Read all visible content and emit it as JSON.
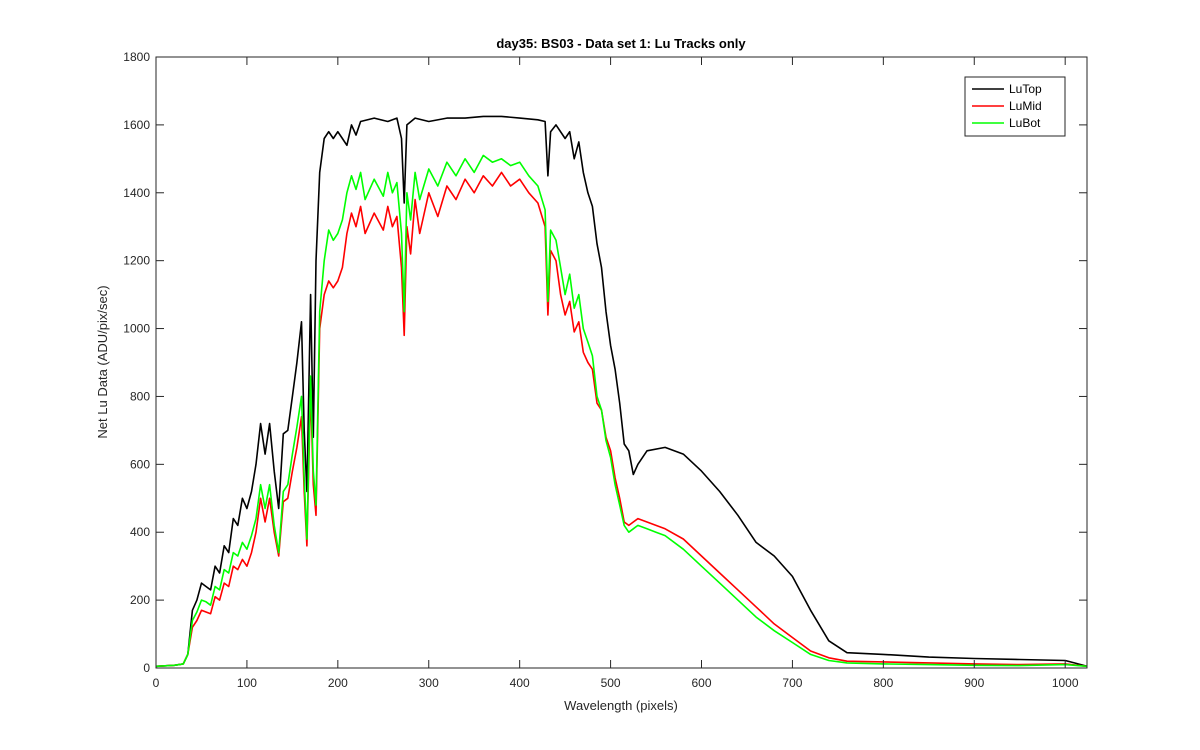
{
  "chart_data": {
    "type": "line",
    "title": "day35: BS03 - Data set 1: Lu Tracks only",
    "xlabel": "Wavelength (pixels)",
    "ylabel": "Net Lu Data (ADU/pix/sec)",
    "xlim": [
      0,
      1024
    ],
    "ylim": [
      0,
      1800
    ],
    "xticks": [
      0,
      100,
      200,
      300,
      400,
      500,
      600,
      700,
      800,
      900,
      1000
    ],
    "yticks": [
      0,
      200,
      400,
      600,
      800,
      1000,
      1200,
      1400,
      1600,
      1800
    ],
    "grid": false,
    "legend_position": "top-right",
    "series": [
      {
        "name": "LuTop",
        "color": "#000000",
        "points": [
          [
            0,
            5
          ],
          [
            20,
            8
          ],
          [
            30,
            12
          ],
          [
            35,
            40
          ],
          [
            40,
            170
          ],
          [
            45,
            200
          ],
          [
            50,
            250
          ],
          [
            55,
            240
          ],
          [
            60,
            230
          ],
          [
            65,
            300
          ],
          [
            70,
            280
          ],
          [
            75,
            360
          ],
          [
            80,
            340
          ],
          [
            85,
            440
          ],
          [
            90,
            420
          ],
          [
            95,
            500
          ],
          [
            100,
            470
          ],
          [
            105,
            520
          ],
          [
            110,
            600
          ],
          [
            115,
            720
          ],
          [
            120,
            630
          ],
          [
            125,
            720
          ],
          [
            130,
            580
          ],
          [
            135,
            470
          ],
          [
            140,
            690
          ],
          [
            145,
            700
          ],
          [
            150,
            800
          ],
          [
            155,
            900
          ],
          [
            160,
            1020
          ],
          [
            163,
            700
          ],
          [
            166,
            520
          ],
          [
            170,
            1100
          ],
          [
            173,
            680
          ],
          [
            176,
            1200
          ],
          [
            180,
            1460
          ],
          [
            185,
            1560
          ],
          [
            190,
            1580
          ],
          [
            195,
            1560
          ],
          [
            200,
            1580
          ],
          [
            205,
            1560
          ],
          [
            210,
            1540
          ],
          [
            215,
            1600
          ],
          [
            220,
            1570
          ],
          [
            225,
            1610
          ],
          [
            240,
            1620
          ],
          [
            255,
            1610
          ],
          [
            265,
            1620
          ],
          [
            270,
            1560
          ],
          [
            273,
            1370
          ],
          [
            276,
            1600
          ],
          [
            285,
            1620
          ],
          [
            300,
            1610
          ],
          [
            320,
            1620
          ],
          [
            340,
            1620
          ],
          [
            360,
            1625
          ],
          [
            380,
            1625
          ],
          [
            400,
            1620
          ],
          [
            420,
            1615
          ],
          [
            428,
            1610
          ],
          [
            431,
            1450
          ],
          [
            434,
            1580
          ],
          [
            440,
            1600
          ],
          [
            450,
            1560
          ],
          [
            455,
            1580
          ],
          [
            460,
            1500
          ],
          [
            465,
            1550
          ],
          [
            470,
            1460
          ],
          [
            475,
            1400
          ],
          [
            480,
            1360
          ],
          [
            485,
            1250
          ],
          [
            490,
            1180
          ],
          [
            495,
            1050
          ],
          [
            500,
            950
          ],
          [
            505,
            880
          ],
          [
            510,
            780
          ],
          [
            515,
            660
          ],
          [
            520,
            640
          ],
          [
            525,
            570
          ],
          [
            530,
            600
          ],
          [
            540,
            640
          ],
          [
            560,
            650
          ],
          [
            580,
            630
          ],
          [
            600,
            580
          ],
          [
            620,
            520
          ],
          [
            640,
            450
          ],
          [
            660,
            370
          ],
          [
            680,
            330
          ],
          [
            700,
            270
          ],
          [
            720,
            170
          ],
          [
            740,
            80
          ],
          [
            760,
            45
          ],
          [
            800,
            40
          ],
          [
            850,
            32
          ],
          [
            900,
            28
          ],
          [
            950,
            25
          ],
          [
            1000,
            22
          ],
          [
            1010,
            15
          ],
          [
            1024,
            5
          ]
        ]
      },
      {
        "name": "LuMid",
        "color": "#ff0000",
        "points": [
          [
            0,
            5
          ],
          [
            20,
            8
          ],
          [
            30,
            12
          ],
          [
            35,
            40
          ],
          [
            40,
            120
          ],
          [
            45,
            140
          ],
          [
            50,
            170
          ],
          [
            55,
            165
          ],
          [
            60,
            160
          ],
          [
            65,
            210
          ],
          [
            70,
            200
          ],
          [
            75,
            250
          ],
          [
            80,
            240
          ],
          [
            85,
            300
          ],
          [
            90,
            290
          ],
          [
            95,
            320
          ],
          [
            100,
            300
          ],
          [
            105,
            340
          ],
          [
            110,
            400
          ],
          [
            115,
            500
          ],
          [
            120,
            430
          ],
          [
            125,
            500
          ],
          [
            130,
            400
          ],
          [
            135,
            330
          ],
          [
            140,
            490
          ],
          [
            145,
            500
          ],
          [
            150,
            580
          ],
          [
            155,
            650
          ],
          [
            160,
            740
          ],
          [
            163,
            520
          ],
          [
            166,
            360
          ],
          [
            170,
            820
          ],
          [
            173,
            540
          ],
          [
            176,
            450
          ],
          [
            180,
            1000
          ],
          [
            185,
            1100
          ],
          [
            190,
            1140
          ],
          [
            195,
            1120
          ],
          [
            200,
            1140
          ],
          [
            205,
            1180
          ],
          [
            210,
            1280
          ],
          [
            215,
            1340
          ],
          [
            220,
            1300
          ],
          [
            225,
            1360
          ],
          [
            230,
            1280
          ],
          [
            240,
            1340
          ],
          [
            250,
            1290
          ],
          [
            255,
            1360
          ],
          [
            260,
            1300
          ],
          [
            265,
            1330
          ],
          [
            270,
            1180
          ],
          [
            273,
            980
          ],
          [
            276,
            1300
          ],
          [
            280,
            1220
          ],
          [
            285,
            1380
          ],
          [
            290,
            1280
          ],
          [
            300,
            1400
          ],
          [
            310,
            1330
          ],
          [
            320,
            1420
          ],
          [
            330,
            1380
          ],
          [
            340,
            1440
          ],
          [
            350,
            1400
          ],
          [
            360,
            1450
          ],
          [
            370,
            1420
          ],
          [
            380,
            1460
          ],
          [
            390,
            1420
          ],
          [
            400,
            1440
          ],
          [
            410,
            1400
          ],
          [
            420,
            1370
          ],
          [
            428,
            1300
          ],
          [
            431,
            1040
          ],
          [
            434,
            1230
          ],
          [
            440,
            1200
          ],
          [
            445,
            1100
          ],
          [
            450,
            1040
          ],
          [
            455,
            1080
          ],
          [
            460,
            990
          ],
          [
            465,
            1020
          ],
          [
            470,
            930
          ],
          [
            475,
            900
          ],
          [
            480,
            880
          ],
          [
            485,
            780
          ],
          [
            490,
            760
          ],
          [
            495,
            680
          ],
          [
            500,
            640
          ],
          [
            505,
            560
          ],
          [
            510,
            500
          ],
          [
            515,
            430
          ],
          [
            520,
            420
          ],
          [
            525,
            430
          ],
          [
            530,
            440
          ],
          [
            540,
            430
          ],
          [
            550,
            420
          ],
          [
            560,
            410
          ],
          [
            580,
            380
          ],
          [
            600,
            330
          ],
          [
            620,
            280
          ],
          [
            640,
            230
          ],
          [
            660,
            180
          ],
          [
            680,
            130
          ],
          [
            700,
            90
          ],
          [
            720,
            50
          ],
          [
            740,
            30
          ],
          [
            760,
            20
          ],
          [
            800,
            18
          ],
          [
            850,
            15
          ],
          [
            900,
            12
          ],
          [
            950,
            10
          ],
          [
            1000,
            12
          ],
          [
            1024,
            5
          ]
        ]
      },
      {
        "name": "LuBot",
        "color": "#00ff00",
        "points": [
          [
            0,
            5
          ],
          [
            20,
            8
          ],
          [
            30,
            12
          ],
          [
            35,
            40
          ],
          [
            40,
            140
          ],
          [
            45,
            165
          ],
          [
            50,
            200
          ],
          [
            55,
            195
          ],
          [
            60,
            185
          ],
          [
            65,
            240
          ],
          [
            70,
            230
          ],
          [
            75,
            290
          ],
          [
            80,
            280
          ],
          [
            85,
            340
          ],
          [
            90,
            330
          ],
          [
            95,
            370
          ],
          [
            100,
            350
          ],
          [
            105,
            390
          ],
          [
            110,
            440
          ],
          [
            115,
            540
          ],
          [
            120,
            470
          ],
          [
            125,
            540
          ],
          [
            130,
            420
          ],
          [
            135,
            340
          ],
          [
            140,
            520
          ],
          [
            145,
            540
          ],
          [
            150,
            630
          ],
          [
            155,
            710
          ],
          [
            160,
            800
          ],
          [
            163,
            560
          ],
          [
            166,
            380
          ],
          [
            170,
            860
          ],
          [
            173,
            580
          ],
          [
            176,
            480
          ],
          [
            180,
            1050
          ],
          [
            185,
            1200
          ],
          [
            190,
            1290
          ],
          [
            195,
            1260
          ],
          [
            200,
            1280
          ],
          [
            205,
            1320
          ],
          [
            210,
            1400
          ],
          [
            215,
            1450
          ],
          [
            220,
            1410
          ],
          [
            225,
            1460
          ],
          [
            230,
            1380
          ],
          [
            240,
            1440
          ],
          [
            250,
            1390
          ],
          [
            255,
            1460
          ],
          [
            260,
            1400
          ],
          [
            265,
            1430
          ],
          [
            270,
            1280
          ],
          [
            273,
            1050
          ],
          [
            276,
            1400
          ],
          [
            280,
            1320
          ],
          [
            285,
            1460
          ],
          [
            290,
            1380
          ],
          [
            300,
            1470
          ],
          [
            310,
            1420
          ],
          [
            320,
            1490
          ],
          [
            330,
            1450
          ],
          [
            340,
            1500
          ],
          [
            350,
            1460
          ],
          [
            360,
            1510
          ],
          [
            370,
            1490
          ],
          [
            380,
            1500
          ],
          [
            390,
            1480
          ],
          [
            400,
            1490
          ],
          [
            410,
            1450
          ],
          [
            420,
            1420
          ],
          [
            428,
            1350
          ],
          [
            431,
            1080
          ],
          [
            434,
            1290
          ],
          [
            440,
            1260
          ],
          [
            445,
            1180
          ],
          [
            450,
            1100
          ],
          [
            455,
            1160
          ],
          [
            460,
            1060
          ],
          [
            465,
            1100
          ],
          [
            470,
            1000
          ],
          [
            475,
            960
          ],
          [
            480,
            920
          ],
          [
            485,
            800
          ],
          [
            490,
            760
          ],
          [
            495,
            670
          ],
          [
            500,
            620
          ],
          [
            505,
            540
          ],
          [
            510,
            480
          ],
          [
            515,
            420
          ],
          [
            520,
            400
          ],
          [
            525,
            410
          ],
          [
            530,
            420
          ],
          [
            540,
            410
          ],
          [
            550,
            400
          ],
          [
            560,
            390
          ],
          [
            580,
            350
          ],
          [
            600,
            300
          ],
          [
            620,
            250
          ],
          [
            640,
            200
          ],
          [
            660,
            150
          ],
          [
            680,
            110
          ],
          [
            700,
            75
          ],
          [
            720,
            40
          ],
          [
            740,
            22
          ],
          [
            760,
            15
          ],
          [
            800,
            12
          ],
          [
            850,
            10
          ],
          [
            900,
            8
          ],
          [
            950,
            7
          ],
          [
            1000,
            10
          ],
          [
            1024,
            5
          ]
        ]
      }
    ]
  }
}
